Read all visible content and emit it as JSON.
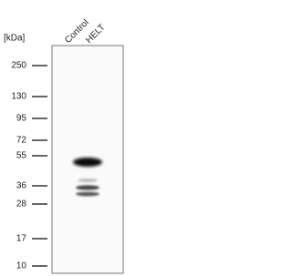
{
  "unit_label": "[kDa]",
  "lanes": [
    "Control",
    "HELT"
  ],
  "markers": [
    "250",
    "130",
    "95",
    "72",
    "55",
    "36",
    "28",
    "17",
    "10"
  ]
}
